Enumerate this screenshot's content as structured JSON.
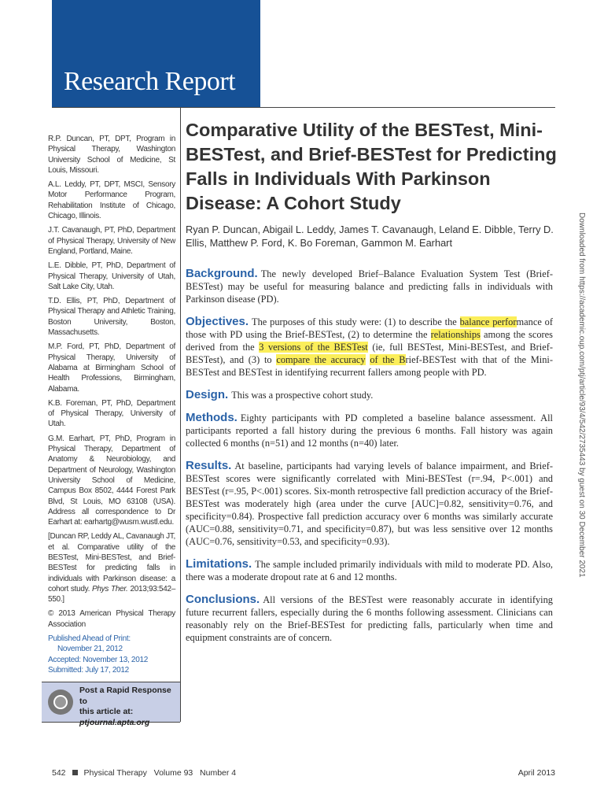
{
  "header": {
    "banner": "Research Report",
    "brand_color": "#165196"
  },
  "left_column": {
    "affiliations": [
      "R.P. Duncan, PT, DPT, Program in Physical Therapy, Washington University School of Medicine, St Louis, Missouri.",
      "A.L. Leddy, PT, DPT, MSCI, Sensory Motor Performance Program, Rehabilitation Institute of Chicago, Chicago, Illinois.",
      "J.T. Cavanaugh, PT, PhD, Department of Physical Therapy, University of New England, Portland, Maine.",
      "L.E. Dibble, PT, PhD, Department of Physical Therapy, University of Utah, Salt Lake City, Utah.",
      "T.D. Ellis, PT, PhD, Department of Physical Therapy and Athletic Training, Boston University, Boston, Massachusetts.",
      "M.P. Ford, PT, PhD, Department of Physical Therapy, University of Alabama at Birmingham School of Health Professions, Birmingham, Alabama.",
      "K.B. Foreman, PT, PhD, Department of Physical Therapy, University of Utah.",
      "G.M. Earhart, PT, PhD, Program in Physical Therapy, Department of Anatomy & Neurobiology, and Department of Neurology, Washington University School of Medicine, Campus Box 8502, 4444 Forest Park Blvd, St Louis, MO 63108 (USA). Address all correspondence to Dr Earhart at: earhartg@wusm.wustl.edu."
    ],
    "citation": "[Duncan RP, Leddy AL, Cavanaugh JT, et al. Comparative utility of the BESTest, Mini-BESTest, and Brief-BESTest for predicting falls in individuals with Parkinson disease: a cohort study.",
    "citation_journal": "Phys Ther.",
    "citation_end": "2013;93:542–550.]",
    "copyright": "© 2013 American Physical Therapy Association",
    "published_label": "Published Ahead of Print:",
    "published_date": "November 21, 2012",
    "accepted": "Accepted: November 13, 2012",
    "submitted": "Submitted: July 17, 2012",
    "rapid_line1": "Post a Rapid Response to",
    "rapid_line2": "this article at:",
    "rapid_link": "ptjournal.apta.org"
  },
  "article": {
    "title": "Comparative Utility of the BESTest, Mini-BESTest, and Brief-BESTest for Predicting Falls in Individuals With Parkinson Disease: A Cohort Study",
    "authors": "Ryan P. Duncan, Abigail L. Leddy, James T. Cavanaugh, Leland E. Dibble, Terry D. Ellis, Matthew P. Ford, K. Bo Foreman, Gammon M. Earhart"
  },
  "abstract": {
    "background_head": "Background.",
    "background": "The newly developed Brief–Balance Evaluation System Test (Brief-BESTest) may be useful for measuring balance and predicting falls in individuals with Parkinson disease (PD).",
    "objectives_head": "Objectives.",
    "objectives": [
      {
        "t": "The purposes of this study were: (1) to describe the ",
        "hl": false
      },
      {
        "t": "balance perfor",
        "hl": true
      },
      {
        "t": "mance of those with PD using the Brief-BESTest, (2) to determine the ",
        "hl": false
      },
      {
        "t": "relationships",
        "hl": true
      },
      {
        "t": " among the scores derived from the ",
        "hl": false
      },
      {
        "t": "3 versions of the BESTest",
        "hl": true
      },
      {
        "t": " (ie, full BESTest, Mini-BESTest, and Brief-BESTest), and (3) to ",
        "hl": false
      },
      {
        "t": "compare the accuracy",
        "hl": true
      },
      {
        "t": " ",
        "hl": false
      },
      {
        "t": "of the B",
        "hl": true
      },
      {
        "t": "rief-BESTest with that of the Mini-BESTest and BESTest in identifying recurrent fallers among people with PD.",
        "hl": false
      }
    ],
    "highlight_color": "#fbee5a",
    "design_head": "Design.",
    "design": "This was a prospective cohort study.",
    "methods_head": "Methods.",
    "methods": "Eighty participants with PD completed a baseline balance assessment. All participants reported a fall history during the previous 6 months. Fall history was again collected 6 months (n=51) and 12 months (n=40) later.",
    "results_head": "Results.",
    "results": "At baseline, participants had varying levels of balance impairment, and Brief-BESTest scores were significantly correlated with Mini-BESTest (r=.94, P<.001) and BESTest (r=.95, P<.001) scores. Six-month retrospective fall prediction accuracy of the Brief-BESTest was moderately high (area under the curve [AUC]=0.82, sensitivity=0.76, and specificity=0.84). Prospective fall prediction accuracy over 6 months was similarly accurate (AUC=0.88, sensitivity=0.71, and specificity=0.87), but was less sensitive over 12 months (AUC=0.76, sensitivity=0.53, and specificity=0.93).",
    "limitations_head": "Limitations.",
    "limitations": "The sample included primarily individuals with mild to moderate PD. Also, there was a moderate dropout rate at 6 and 12 months.",
    "conclusions_head": "Conclusions.",
    "conclusions": "All versions of the BESTest were reasonably accurate in identifying future recurrent fallers, especially during the 6 months following assessment. Clinicians can reasonably rely on the Brief-BESTest for predicting falls, particularly when time and equipment constraints are of concern."
  },
  "side_note": "Downloaded from https://academic.oup.com/ptj/article/93/4/542/2735443 by guest on 30 December 2021",
  "footer": {
    "page": "542",
    "journal": "Physical Therapy",
    "volume": "Volume 93",
    "number": "Number 4",
    "date": "April 2013"
  }
}
